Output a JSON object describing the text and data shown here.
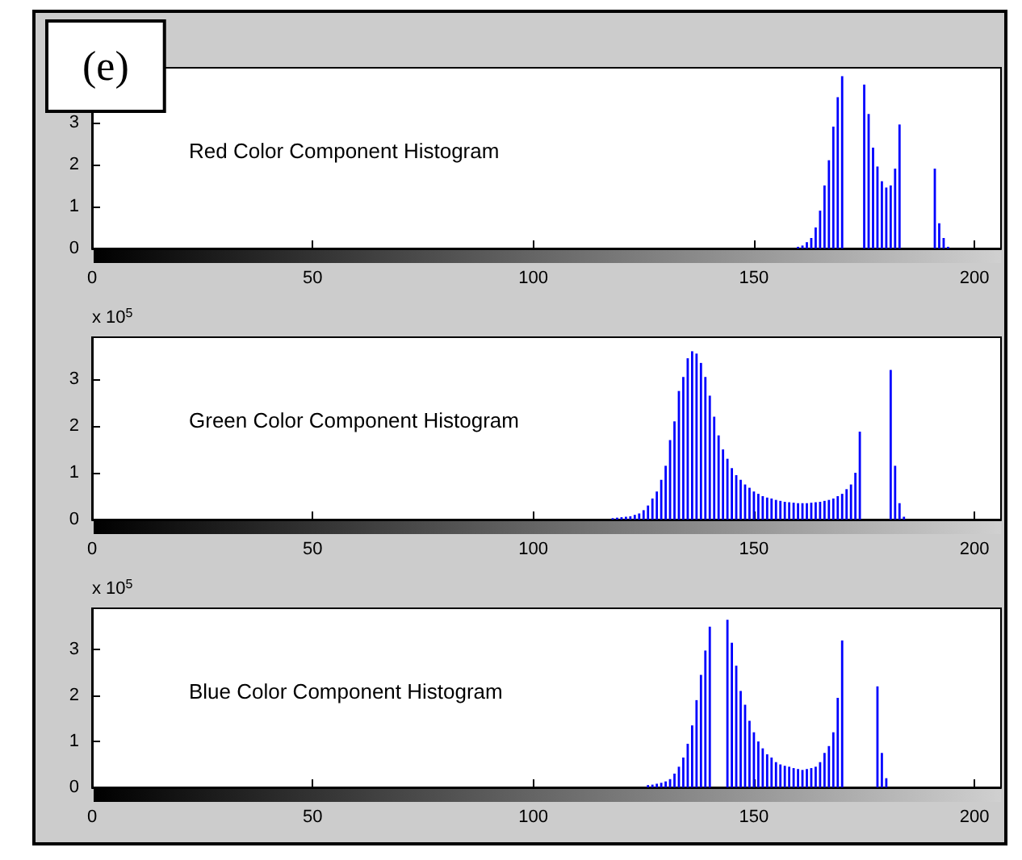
{
  "chart_data": [
    {
      "type": "bar",
      "title": "Red Color Component Histogram",
      "annotations": [
        "(e)"
      ],
      "color": "#0000ff",
      "xlim": [
        0,
        206
      ],
      "xticks": [
        0,
        50,
        100,
        150,
        200
      ],
      "ylim": [
        0,
        4.3
      ],
      "yticks": [
        0,
        1,
        2,
        3
      ],
      "x": [
        160,
        161,
        162,
        163,
        164,
        165,
        166,
        167,
        168,
        169,
        170,
        171,
        172,
        173,
        174,
        175,
        176,
        177,
        178,
        179,
        180,
        181,
        182,
        183,
        184,
        185,
        186,
        187,
        188,
        189,
        190,
        191,
        192,
        193,
        194
      ],
      "values": [
        0.04,
        0.07,
        0.15,
        0.25,
        0.5,
        0.9,
        1.5,
        2.1,
        2.9,
        3.6,
        4.1,
        null,
        null,
        null,
        null,
        3.9,
        3.2,
        2.4,
        1.95,
        1.6,
        1.45,
        1.5,
        1.9,
        2.95,
        null,
        null,
        null,
        null,
        null,
        null,
        null,
        1.9,
        0.6,
        0.25,
        0.04
      ]
    },
    {
      "type": "bar",
      "title": "Green Color Component Histogram",
      "annotations": [
        "x 10$^{5}$"
      ],
      "color": "#0000ff",
      "xlim": [
        0,
        206
      ],
      "xticks": [
        0,
        50,
        100,
        150,
        200
      ],
      "ylim": [
        0,
        3.9
      ],
      "yticks": [
        0,
        1,
        2,
        3
      ],
      "x": [
        118,
        119,
        120,
        121,
        122,
        123,
        124,
        125,
        126,
        127,
        128,
        129,
        130,
        131,
        132,
        133,
        134,
        135,
        136,
        137,
        138,
        139,
        140,
        141,
        142,
        143,
        144,
        145,
        146,
        147,
        148,
        149,
        150,
        151,
        152,
        153,
        154,
        155,
        156,
        157,
        158,
        159,
        160,
        161,
        162,
        163,
        164,
        165,
        166,
        167,
        168,
        169,
        170,
        171,
        172,
        173,
        174,
        175,
        176,
        177,
        178,
        179,
        180,
        181,
        182,
        183,
        184
      ],
      "values": [
        0.03,
        0.04,
        0.05,
        0.06,
        0.07,
        0.1,
        0.13,
        0.2,
        0.3,
        0.45,
        0.6,
        0.85,
        1.15,
        1.7,
        2.1,
        2.75,
        3.05,
        3.45,
        3.6,
        3.55,
        3.35,
        3.05,
        2.65,
        2.2,
        1.8,
        1.5,
        1.3,
        1.1,
        0.95,
        0.85,
        0.75,
        0.68,
        0.6,
        0.55,
        0.5,
        0.47,
        0.45,
        0.42,
        0.4,
        0.38,
        0.37,
        0.36,
        0.35,
        0.35,
        0.35,
        0.36,
        0.37,
        0.38,
        0.4,
        0.42,
        0.45,
        0.5,
        0.55,
        0.65,
        0.75,
        1.0,
        1.88,
        null,
        null,
        null,
        null,
        null,
        null,
        3.2,
        1.15,
        0.35,
        0.06
      ]
    },
    {
      "type": "bar",
      "title": "Blue Color Component Histogram",
      "annotations": [
        "x 10$^{5}$"
      ],
      "color": "#0000ff",
      "xlim": [
        0,
        206
      ],
      "xticks": [
        0,
        50,
        100,
        150,
        200
      ],
      "ylim": [
        0,
        3.9
      ],
      "yticks": [
        0,
        1,
        2,
        3
      ],
      "x": [
        126,
        127,
        128,
        129,
        130,
        131,
        132,
        133,
        134,
        135,
        136,
        137,
        138,
        139,
        140,
        141,
        142,
        143,
        144,
        145,
        146,
        147,
        148,
        149,
        150,
        151,
        152,
        153,
        154,
        155,
        156,
        157,
        158,
        159,
        160,
        161,
        162,
        163,
        164,
        165,
        166,
        167,
        168,
        169,
        170,
        171,
        172,
        173,
        174,
        175,
        176,
        177,
        178,
        179,
        180
      ],
      "values": [
        0.05,
        0.06,
        0.08,
        0.1,
        0.13,
        0.18,
        0.3,
        0.45,
        0.65,
        0.95,
        1.35,
        1.9,
        2.45,
        2.98,
        3.5,
        null,
        null,
        null,
        3.65,
        3.15,
        2.65,
        2.1,
        1.8,
        1.45,
        1.2,
        1.0,
        0.85,
        0.72,
        0.65,
        0.55,
        0.5,
        0.47,
        0.45,
        0.42,
        0.4,
        0.38,
        0.4,
        0.42,
        0.45,
        0.55,
        0.75,
        0.9,
        1.2,
        1.95,
        3.2,
        null,
        null,
        null,
        null,
        null,
        null,
        null,
        2.2,
        0.75,
        0.2
      ]
    }
  ]
}
